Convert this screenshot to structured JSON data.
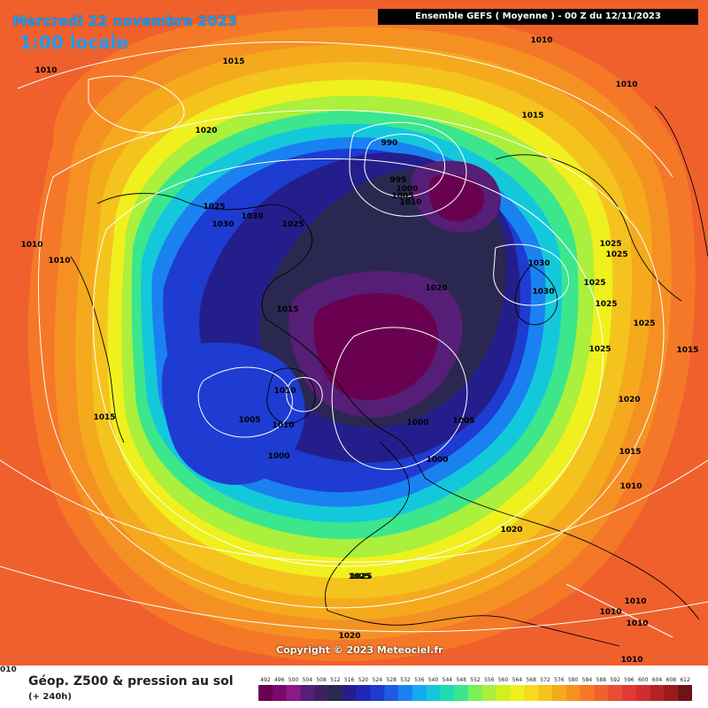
{
  "header": {
    "date": "Mercredi 22 novembre 2023",
    "time": "1:00 locale",
    "run_info": "Ensemble GEFS  ( Moyenne )  - 00 Z du 12/11/2023"
  },
  "footer": {
    "copyright": "Copyright © 2023 Meteociel.fr",
    "field_title": "Géop. Z500 & pression au sol",
    "lead": "(+ 240h)",
    "edge_label": "010"
  },
  "legend": {
    "values": [
      "492",
      "496",
      "500",
      "504",
      "508",
      "512",
      "516",
      "520",
      "524",
      "528",
      "532",
      "536",
      "540",
      "544",
      "548",
      "552",
      "556",
      "560",
      "564",
      "568",
      "572",
      "576",
      "580",
      "584",
      "588",
      "592",
      "596",
      "600",
      "604",
      "608",
      "612"
    ],
    "colors": [
      "#6a0050",
      "#7b0a6b",
      "#8c1a86",
      "#561e76",
      "#402060",
      "#2a2850",
      "#241e8c",
      "#1e28b4",
      "#1e3cd2",
      "#1e5ae6",
      "#1a82f0",
      "#14aaf0",
      "#14c8dc",
      "#1edcb4",
      "#3ce68c",
      "#78f05a",
      "#aaf03c",
      "#d2f01e",
      "#f0f01e",
      "#f5dc1e",
      "#f5c31e",
      "#f5aa1e",
      "#f59123",
      "#f57828",
      "#f0602d",
      "#eb4b32",
      "#e63737",
      "#d22d2d",
      "#b42323",
      "#961c1c",
      "#6e1414"
    ]
  },
  "isobars": [
    {
      "value": "1010"
    },
    {
      "value": "1015"
    },
    {
      "value": "1010"
    },
    {
      "value": "1010"
    },
    {
      "value": "1020"
    },
    {
      "value": "1015"
    },
    {
      "value": "990"
    },
    {
      "value": "995"
    },
    {
      "value": "1000"
    },
    {
      "value": "1005"
    },
    {
      "value": "1010"
    },
    {
      "value": "1025"
    },
    {
      "value": "1030"
    },
    {
      "value": "1030"
    },
    {
      "value": "1025"
    },
    {
      "value": "1010"
    },
    {
      "value": "1010"
    },
    {
      "value": "1025"
    },
    {
      "value": "1025"
    },
    {
      "value": "1030"
    },
    {
      "value": "1030"
    },
    {
      "value": "1020"
    },
    {
      "value": "1015"
    },
    {
      "value": "1025"
    },
    {
      "value": "1025"
    },
    {
      "value": "1025"
    },
    {
      "value": "1025"
    },
    {
      "value": "1015"
    },
    {
      "value": "1015"
    },
    {
      "value": "1020"
    },
    {
      "value": "1010"
    },
    {
      "value": "1025"
    },
    {
      "value": "1005"
    },
    {
      "value": "1010"
    },
    {
      "value": "1000"
    },
    {
      "value": "1000"
    },
    {
      "value": "1005"
    },
    {
      "value": "1000"
    },
    {
      "value": "1015"
    },
    {
      "value": "1010"
    },
    {
      "value": "1020"
    },
    {
      "value": "1025"
    },
    {
      "value": "1010"
    },
    {
      "value": "1010"
    },
    {
      "value": "1010"
    },
    {
      "value": "1020"
    },
    {
      "value": "1010"
    }
  ]
}
